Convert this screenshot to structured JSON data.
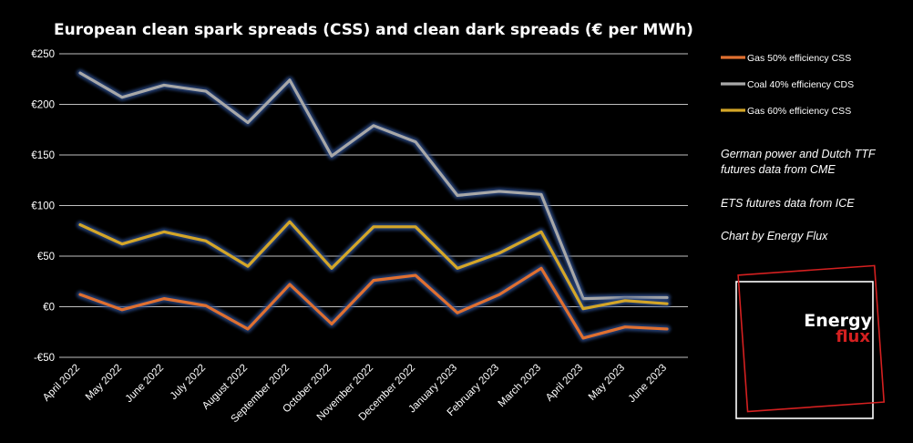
{
  "chart_data": {
    "type": "line",
    "title": "European  clean spark spreads (CSS) and clean dark spreads (€ per MWh)",
    "categories": [
      "April 2022",
      "May 2022",
      "June 2022",
      "July 2022",
      "August 2022",
      "September 2022",
      "October 2022",
      "November 2022",
      "December 2022",
      "January 2023",
      "February 2023",
      "March 2023",
      "April 2023",
      "May 2023",
      "June 2023"
    ],
    "ylim": [
      -50,
      250
    ],
    "yticks": [
      -50,
      0,
      50,
      100,
      150,
      200,
      250
    ],
    "ytick_labels": [
      "-€50",
      "€0",
      "€50",
      "€100",
      "€150",
      "€200",
      "€250"
    ],
    "grid": true,
    "legend_position": "right",
    "series": [
      {
        "name": "Gas 50% efficiency CSS",
        "color": "#e07030",
        "values": [
          12,
          -3,
          8,
          1,
          -22,
          22,
          -17,
          26,
          31,
          -6,
          12,
          38,
          -31,
          -20,
          -22
        ]
      },
      {
        "name": "Coal 40% efficiency CDS",
        "color": "#a8a8a8",
        "values": [
          231,
          207,
          219,
          213,
          182,
          224,
          149,
          179,
          163,
          110,
          114,
          111,
          8,
          9,
          9
        ]
      },
      {
        "name": "Gas 60% efficiency CSS",
        "color": "#d4a628",
        "values": [
          81,
          62,
          74,
          65,
          40,
          84,
          38,
          79,
          79,
          38,
          53,
          74,
          -2,
          6,
          3
        ]
      }
    ],
    "notes": [
      [
        "German power and Dutch TTF",
        "futures data from CME"
      ],
      [
        "ETS futures data from ICE"
      ],
      [
        "Chart by Energy Flux"
      ]
    ]
  },
  "logo": {
    "word1": "Energy",
    "word2": "flux",
    "frame_color": "#d42020"
  }
}
